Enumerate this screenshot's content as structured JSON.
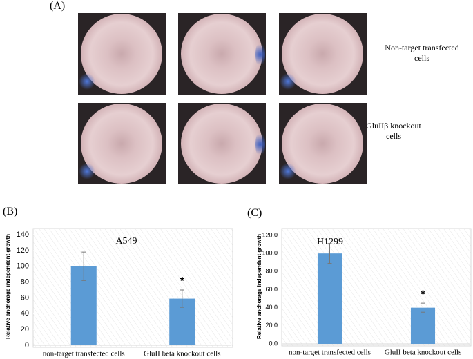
{
  "panel_a": {
    "label": "(A)",
    "rows": [
      "Non-target transfected cells",
      "GluIIβ knockout cells"
    ]
  },
  "chart_data": [
    {
      "type": "bar",
      "panel_label": "(B)",
      "title": "A549",
      "y_label": "Relative anchorage independent growth",
      "categories": [
        "non-target transfected cells",
        "GluII beta knockout cells"
      ],
      "values": [
        100,
        59
      ],
      "errors": [
        18,
        11
      ],
      "color": "#5b9bd5",
      "annotation": "*",
      "ylim": [
        0,
        140
      ],
      "yticks": [
        0,
        20,
        40,
        60,
        80,
        100,
        120,
        140
      ]
    },
    {
      "type": "bar",
      "panel_label": "(C)",
      "title": "H1299",
      "y_label": "Relative anchorage independent growth",
      "categories": [
        "non-target transfected cells",
        "GluII beta knockout cells"
      ],
      "values": [
        100,
        40
      ],
      "errors": [
        11,
        5
      ],
      "color": "#5b9bd5",
      "annotation": "*",
      "ylim": [
        0,
        120
      ],
      "yticks": [
        {
          "value": 0,
          "label": "0.0"
        },
        {
          "value": 20,
          "label": "20.0"
        },
        {
          "value": 40,
          "label": "40.0"
        },
        {
          "value": 60,
          "label": "60.0"
        },
        {
          "value": 80,
          "label": "80.0"
        },
        {
          "value": 100,
          "label": "100.0"
        },
        {
          "value": 120,
          "label": "120.0"
        }
      ]
    }
  ]
}
